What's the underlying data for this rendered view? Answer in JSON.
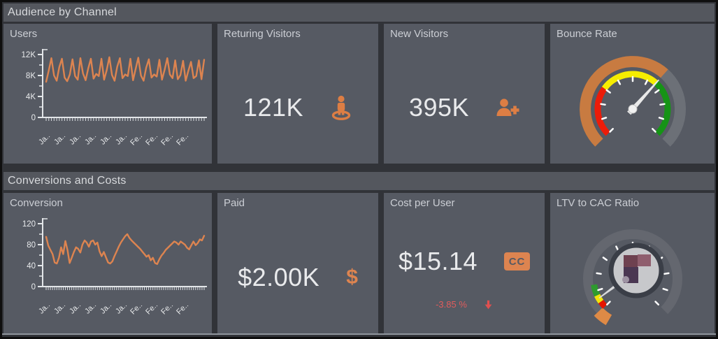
{
  "colors": {
    "accent": "#DD8450",
    "negative": "#E05C5C",
    "card_bg": "#565A63",
    "header_bg": "#54575E",
    "page_bg": "#313338",
    "text_title": "#CBCED4",
    "text_value": "#E9EAEC",
    "axis": "#E2E5E8"
  },
  "sections": [
    {
      "title": "Audience by Channel"
    },
    {
      "title": "Conversions and Costs"
    }
  ],
  "cards": {
    "users": {
      "title": "Users"
    },
    "returning": {
      "title": "Returing Visitors",
      "value": "121K",
      "icon": "street-view-icon"
    },
    "new_visitors": {
      "title": "New Visitors",
      "value": "395K",
      "icon": "user-plus-icon"
    },
    "bounce": {
      "title": "Bounce Rate"
    },
    "conversion": {
      "title": "Conversion"
    },
    "paid": {
      "title": "Paid",
      "value": "$2.00K",
      "icon_char": "$"
    },
    "cost_per_user": {
      "title": "Cost per User",
      "value": "$15.14",
      "icon_text": "CC",
      "delta": "-3.85 %",
      "delta_direction": "down"
    },
    "ltv": {
      "title": "LTV to CAC Ratio"
    }
  },
  "chart_data": [
    {
      "id": "users",
      "type": "line",
      "title": "Users",
      "unit": "K",
      "ylim": [
        0,
        12
      ],
      "yticks": [
        {
          "label": "12K",
          "value": 12
        },
        {
          "label": "8K",
          "value": 8
        },
        {
          "label": "4K",
          "value": 4
        },
        {
          "label": "0",
          "value": 0
        }
      ],
      "yticks_minor": [
        2,
        6,
        10
      ],
      "x_labels": [
        "Ja..",
        "Ja..",
        "Ja..",
        "Ja..",
        "Ja..",
        "Ja..",
        "Fe..",
        "Fe..",
        "Fe..",
        "Fe.."
      ],
      "line_color": "#DD8450",
      "values": [
        6.8,
        9.0,
        11.3,
        8.0,
        7.0,
        9.6,
        11.2,
        7.6,
        6.9,
        8.2,
        11.1,
        7.9,
        7.2,
        11.3,
        8.4,
        7.1,
        9.4,
        11.2,
        7.4,
        8.3,
        7.9,
        11.2,
        7.2,
        9.0,
        11.5,
        8.1,
        7.0,
        9.7,
        11.3,
        7.5,
        8.2,
        7.9,
        11.2,
        7.1,
        9.3,
        11.4,
        8.0,
        7.0,
        9.5,
        11.1,
        7.6,
        8.2,
        7.8,
        11.0,
        7.2,
        9.1,
        11.3,
        8.2,
        7.5,
        10.9,
        7.3,
        8.1,
        10.8,
        7.0,
        8.9,
        10.6,
        7.5,
        7.9,
        10.9,
        7.3,
        11.0
      ]
    },
    {
      "id": "conversion",
      "type": "line",
      "title": "Conversion",
      "ylim": [
        0,
        120
      ],
      "yticks": [
        {
          "label": "120",
          "value": 120
        },
        {
          "label": "80",
          "value": 80
        },
        {
          "label": "40",
          "value": 40
        },
        {
          "label": "0",
          "value": 0
        }
      ],
      "yticks_minor": [
        20,
        60,
        100
      ],
      "x_labels": [
        "Ja..",
        "Ja..",
        "Ja..",
        "Ja..",
        "Ja..",
        "Ja..",
        "Fe..",
        "Fe..",
        "Fe..",
        "Fe.."
      ],
      "line_color": "#DD8450",
      "values": [
        95,
        78,
        70,
        62,
        46,
        44,
        55,
        75,
        62,
        87,
        70,
        45,
        55,
        66,
        75,
        72,
        65,
        80,
        88,
        84,
        76,
        86,
        88,
        80,
        84,
        67,
        58,
        66,
        56,
        46,
        44,
        48,
        58,
        67,
        76,
        84,
        90,
        96,
        100,
        93,
        88,
        84,
        80,
        76,
        72,
        67,
        62,
        57,
        60,
        50,
        55,
        45,
        43,
        52,
        59,
        64,
        70,
        74,
        78,
        82,
        86,
        84,
        80,
        86,
        83,
        80,
        74,
        71,
        79,
        86,
        79,
        83,
        90,
        88,
        97
      ]
    },
    {
      "id": "bounce",
      "type": "gauge",
      "title": "Bounce Rate",
      "value": 0.655,
      "progress_color": "#C87B41",
      "track_color": "#6C7077",
      "tick_count": 11,
      "tick_color": "#FFFFFF",
      "needle_color": "#E9E9E9",
      "bands": [
        {
          "from": 0.0,
          "to": 0.3,
          "color": "#EC1C09"
        },
        {
          "from": 0.3,
          "to": 0.655,
          "color": "#F6ED00"
        },
        {
          "from": 0.655,
          "to": 1.0,
          "color": "#169316"
        }
      ]
    },
    {
      "id": "ltv",
      "type": "gauge",
      "title": "LTV to CAC Ratio",
      "value": 0.02,
      "ring_color": "#64676F",
      "tick_count": 11,
      "tick_color": "#FFFFFF",
      "needle_color": "#D9DADC",
      "bands": [
        {
          "from": 0.0,
          "to": 0.035,
          "color": "#E41400"
        },
        {
          "from": 0.035,
          "to": 0.075,
          "color": "#F2E40A"
        },
        {
          "from": 0.075,
          "to": 0.135,
          "color": "#2E9A2E"
        }
      ],
      "marker": {
        "from": -0.055,
        "to": 0.005,
        "color": "#DE8A46"
      },
      "center_overlay": {
        "fill": "#C7C8CB",
        "ring": "#3A3E47",
        "dot_color": "#9E93A3",
        "blocks": [
          {
            "x": -18,
            "y": -22,
            "w": 20,
            "h": 17,
            "color": "#6E4150"
          },
          {
            "x": 2,
            "y": -23,
            "w": 19,
            "h": 17,
            "color": "#8F5E6E"
          },
          {
            "x": -18,
            "y": -5,
            "w": 21,
            "h": 23,
            "color": "#4A3752"
          }
        ]
      }
    }
  ]
}
